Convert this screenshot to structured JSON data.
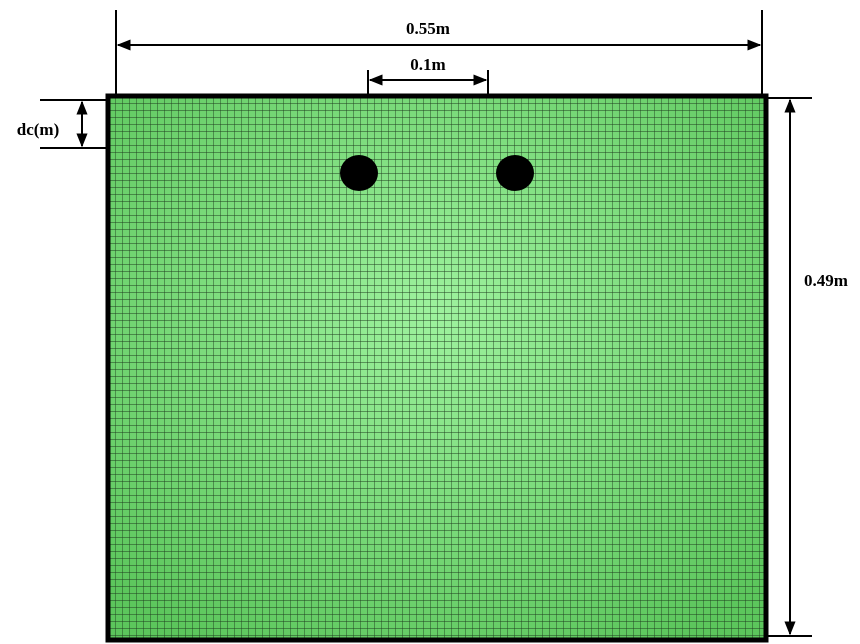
{
  "dimensions": {
    "width": "0.55m",
    "spacing": "0.1m",
    "height": "0.49m",
    "depth": "dc(m)"
  }
}
